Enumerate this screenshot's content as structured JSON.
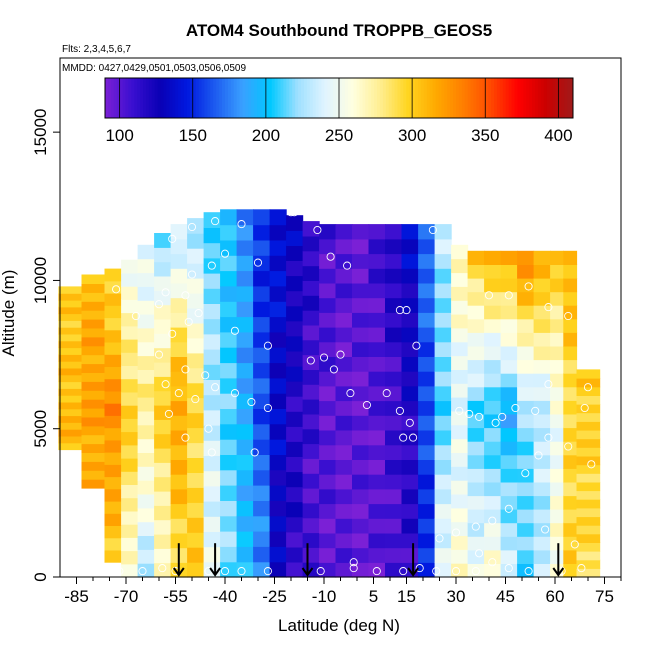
{
  "chart_data": {
    "type": "heatmap",
    "title": "ATOM4 Southbound TROPPB_GEOS5",
    "subtitle_flights": "Flts: 2,3,4,5,6,7",
    "subtitle_dates": "MMDD: 0427,0429,0501,0503,0506,0509",
    "xlabel": "Latitude (deg N)",
    "ylabel": "Altitude (m)",
    "xlim": [
      -90,
      80
    ],
    "ylim": [
      0,
      17500
    ],
    "x_major_ticks": [
      -85,
      -70,
      -55,
      -40,
      -25,
      -10,
      5,
      15,
      30,
      45,
      60,
      75
    ],
    "x_major_tick_labels": [
      "-85",
      "-70",
      "-55",
      "-40",
      "-25",
      "-10",
      "5",
      "15",
      "30",
      "45",
      "60",
      "75"
    ],
    "y_ticks": [
      0,
      5000,
      10000,
      15000
    ],
    "y_tick_labels": [
      "0",
      "5000",
      "10000",
      "15000"
    ],
    "colorbar": {
      "min": 90,
      "max": 410,
      "ticks": [
        100,
        150,
        200,
        250,
        300,
        350,
        400
      ],
      "tick_labels": [
        "100",
        "150",
        "200",
        "250",
        "300",
        "350",
        "400"
      ],
      "palette": [
        "#7b20d6",
        "#3a0fd0",
        "#0a00b5",
        "#0019e0",
        "#1d5cf0",
        "#3aa0ff",
        "#00c8ff",
        "#9fe0ff",
        "#e0f4ff",
        "#ffffe0",
        "#ffee90",
        "#ffd520",
        "#ffaa00",
        "#ff7f00",
        "#ff4a00",
        "#ff0000",
        "#cc0000",
        "#a01a1a"
      ]
    },
    "latitude_profile_values": [
      {
        "lat": -87,
        "top": 9800,
        "bottom": 4300,
        "v_low": 310,
        "v_mid": 305,
        "v_high": 300
      },
      {
        "lat": -80,
        "top": 10200,
        "bottom": 3000,
        "v_low": 315,
        "v_mid": 320,
        "v_high": 310
      },
      {
        "lat": -73,
        "top": 10400,
        "bottom": 500,
        "v_low": 300,
        "v_mid": 330,
        "v_high": 290
      },
      {
        "lat": -68,
        "top": 10700,
        "bottom": 0,
        "v_low": 260,
        "v_mid": 300,
        "v_high": 250
      },
      {
        "lat": -63,
        "top": 11200,
        "bottom": 0,
        "v_low": 230,
        "v_mid": 280,
        "v_high": 240
      },
      {
        "lat": -58,
        "top": 11600,
        "bottom": 0,
        "v_low": 260,
        "v_mid": 300,
        "v_high": 220
      },
      {
        "lat": -53,
        "top": 11900,
        "bottom": 0,
        "v_low": 290,
        "v_mid": 320,
        "v_high": 230
      },
      {
        "lat": -48,
        "top": 12100,
        "bottom": 0,
        "v_low": 300,
        "v_mid": 290,
        "v_high": 220
      },
      {
        "lat": -43,
        "top": 12300,
        "bottom": 0,
        "v_low": 250,
        "v_mid": 230,
        "v_high": 210
      },
      {
        "lat": -38,
        "top": 12400,
        "bottom": 0,
        "v_low": 220,
        "v_mid": 210,
        "v_high": 200
      },
      {
        "lat": -33,
        "top": 12400,
        "bottom": 0,
        "v_low": 200,
        "v_mid": 190,
        "v_high": 180
      },
      {
        "lat": -28,
        "top": 12400,
        "bottom": 0,
        "v_low": 180,
        "v_mid": 160,
        "v_high": 150
      },
      {
        "lat": -23,
        "top": 12400,
        "bottom": 0,
        "v_low": 130,
        "v_mid": 135,
        "v_high": 140
      },
      {
        "lat": -18,
        "top": 12200,
        "bottom": 0,
        "v_low": 115,
        "v_mid": 120,
        "v_high": 130
      },
      {
        "lat": -13,
        "top": 12000,
        "bottom": 0,
        "v_low": 105,
        "v_mid": 108,
        "v_high": 115
      },
      {
        "lat": -8,
        "top": 11900,
        "bottom": 0,
        "v_low": 100,
        "v_mid": 100,
        "v_high": 105
      },
      {
        "lat": -3,
        "top": 11900,
        "bottom": 0,
        "v_low": 98,
        "v_mid": 98,
        "v_high": 100
      },
      {
        "lat": 2,
        "top": 11900,
        "bottom": 0,
        "v_low": 98,
        "v_mid": 98,
        "v_high": 100
      },
      {
        "lat": 7,
        "top": 11900,
        "bottom": 0,
        "v_low": 100,
        "v_mid": 100,
        "v_high": 108
      },
      {
        "lat": 12,
        "top": 11900,
        "bottom": 0,
        "v_low": 105,
        "v_mid": 108,
        "v_high": 120
      },
      {
        "lat": 17,
        "top": 11900,
        "bottom": 0,
        "v_low": 110,
        "v_mid": 120,
        "v_high": 135
      },
      {
        "lat": 22,
        "top": 11900,
        "bottom": 0,
        "v_low": 150,
        "v_mid": 160,
        "v_high": 170
      },
      {
        "lat": 27,
        "top": 11900,
        "bottom": 0,
        "v_low": 250,
        "v_mid": 210,
        "v_high": 230
      },
      {
        "lat": 32,
        "top": 11200,
        "bottom": 0,
        "v_low": 260,
        "v_mid": 240,
        "v_high": 270
      },
      {
        "lat": 37,
        "top": 11000,
        "bottom": 0,
        "v_low": 250,
        "v_mid": 210,
        "v_high": 300
      },
      {
        "lat": 42,
        "top": 11000,
        "bottom": 0,
        "v_low": 260,
        "v_mid": 200,
        "v_high": 310
      },
      {
        "lat": 47,
        "top": 11000,
        "bottom": 0,
        "v_low": 240,
        "v_mid": 190,
        "v_high": 320
      },
      {
        "lat": 52,
        "top": 11000,
        "bottom": 0,
        "v_low": 210,
        "v_mid": 220,
        "v_high": 330
      },
      {
        "lat": 57,
        "top": 11000,
        "bottom": 0,
        "v_low": 230,
        "v_mid": 230,
        "v_high": 320
      },
      {
        "lat": 62,
        "top": 11000,
        "bottom": 0,
        "v_low": 260,
        "v_mid": 250,
        "v_high": 300
      },
      {
        "lat": 66,
        "top": 11000,
        "bottom": 0,
        "v_low": 300,
        "v_mid": 290,
        "v_high": 310
      },
      {
        "lat": 70,
        "top": 7000,
        "bottom": 0,
        "v_low": 290,
        "v_mid": 295,
        "v_high": 300
      }
    ],
    "sample_points": [
      [
        -73,
        9700
      ],
      [
        -58,
        9600
      ],
      [
        -52,
        9500
      ],
      [
        -60,
        9200
      ],
      [
        -48,
        8900
      ],
      [
        -67,
        8800
      ],
      [
        -51,
        8600
      ],
      [
        -56,
        8200
      ],
      [
        -37,
        8300
      ],
      [
        -60,
        7500
      ],
      [
        -52,
        7000
      ],
      [
        -46,
        6800
      ],
      [
        -58,
        6500
      ],
      [
        -43,
        6400
      ],
      [
        -54,
        6200
      ],
      [
        -49,
        6000
      ],
      [
        -37,
        6200
      ],
      [
        -32,
        5900
      ],
      [
        -27,
        5700
      ],
      [
        -57,
        5500
      ],
      [
        -45,
        5000
      ],
      [
        -52,
        4700
      ],
      [
        -44,
        4200
      ],
      [
        -31,
        4200
      ],
      [
        -50,
        10200
      ],
      [
        -44,
        10500
      ],
      [
        -40,
        10900
      ],
      [
        -56,
        11400
      ],
      [
        -50,
        11800
      ],
      [
        -35,
        11900
      ],
      [
        -43,
        12000
      ],
      [
        -30,
        10600
      ],
      [
        -20,
        12300
      ],
      [
        -19,
        12300
      ],
      [
        -12,
        11700
      ],
      [
        -8,
        10800
      ],
      [
        -3,
        10500
      ],
      [
        -27,
        7800
      ],
      [
        -14,
        7300
      ],
      [
        -10,
        7400
      ],
      [
        -5,
        7500
      ],
      [
        -7,
        7000
      ],
      [
        -2,
        6200
      ],
      [
        3,
        5800
      ],
      [
        9,
        6200
      ],
      [
        13,
        5600
      ],
      [
        16,
        5200
      ],
      [
        14,
        4700
      ],
      [
        17,
        4700
      ],
      [
        13,
        9000
      ],
      [
        15,
        9000
      ],
      [
        18,
        7800
      ],
      [
        23,
        11700
      ],
      [
        31,
        5600
      ],
      [
        34,
        5500
      ],
      [
        37,
        5400
      ],
      [
        42,
        5200
      ],
      [
        44,
        5400
      ],
      [
        48,
        5700
      ],
      [
        54,
        5600
      ],
      [
        58,
        6500
      ],
      [
        52,
        9800
      ],
      [
        40,
        9500
      ],
      [
        46,
        9500
      ],
      [
        58,
        9100
      ],
      [
        64,
        8800
      ],
      [
        68,
        8500
      ],
      [
        70,
        6400
      ],
      [
        69,
        5700
      ],
      [
        71,
        3800
      ],
      [
        64,
        4400
      ],
      [
        58,
        4700
      ],
      [
        55,
        4100
      ],
      [
        51,
        3500
      ],
      [
        46,
        2300
      ],
      [
        41,
        1900
      ],
      [
        36,
        1700
      ],
      [
        30,
        1500
      ],
      [
        25,
        1300
      ],
      [
        57,
        1600
      ],
      [
        66,
        1100
      ],
      [
        37,
        800
      ],
      [
        41,
        500
      ],
      [
        46,
        300
      ],
      [
        52,
        200
      ],
      [
        68,
        300
      ],
      [
        30,
        200
      ],
      [
        -1,
        500
      ],
      [
        -1,
        300
      ],
      [
        -11,
        200
      ],
      [
        -27,
        200
      ],
      [
        -35,
        200
      ],
      [
        -40,
        200
      ],
      [
        -45,
        200
      ],
      [
        -55,
        200
      ],
      [
        -59,
        300
      ],
      [
        -65,
        200
      ],
      [
        -72,
        200
      ],
      [
        6,
        200
      ],
      [
        14,
        200
      ],
      [
        19,
        300
      ],
      [
        24,
        200
      ],
      [
        36,
        200
      ],
      [
        62,
        200
      ]
    ],
    "arrow_latitudes": [
      -54,
      -43,
      -15,
      17,
      61
    ],
    "grid": false
  }
}
